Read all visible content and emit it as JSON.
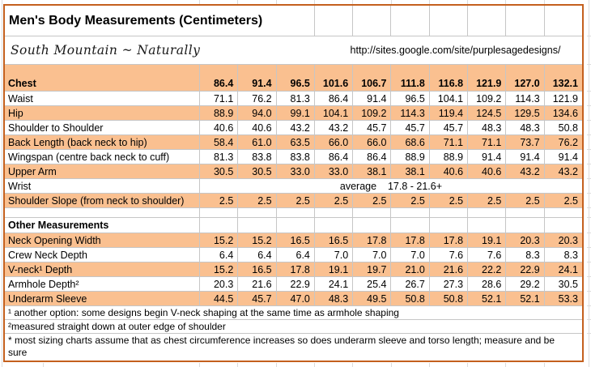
{
  "title": "Men's Body Measurements (Centimeters)",
  "subtitle": "South Mountain ~ Naturally",
  "url": "http://sites.google.com/site/purplesagedesigns/",
  "colors": {
    "band": "#FAC090",
    "border": "#C4601E",
    "gridline": "#C6C6C6"
  },
  "chart_data": {
    "type": "table",
    "title": "Men's Body Measurements (Centimeters)",
    "header": {
      "label": "Chest",
      "values": [
        "86.4",
        "91.4",
        "96.5",
        "101.6",
        "106.7",
        "111.8",
        "116.8",
        "121.9",
        "127.0",
        "132.1"
      ]
    },
    "rows": [
      {
        "kind": "data",
        "band": false,
        "label": "Waist",
        "values": [
          "71.1",
          "76.2",
          "81.3",
          "86.4",
          "91.4",
          "96.5",
          "104.1",
          "109.2",
          "114.3",
          "121.9"
        ]
      },
      {
        "kind": "data",
        "band": true,
        "label": "Hip",
        "values": [
          "88.9",
          "94.0",
          "99.1",
          "104.1",
          "109.2",
          "114.3",
          "119.4",
          "124.5",
          "129.5",
          "134.6"
        ]
      },
      {
        "kind": "data",
        "band": false,
        "label": "Shoulder to Shoulder",
        "values": [
          "40.6",
          "40.6",
          "43.2",
          "43.2",
          "45.7",
          "45.7",
          "45.7",
          "48.3",
          "48.3",
          "50.8"
        ]
      },
      {
        "kind": "data",
        "band": true,
        "label": "Back Length (back neck to hip)",
        "values": [
          "58.4",
          "61.0",
          "63.5",
          "66.0",
          "66.0",
          "68.6",
          "71.1",
          "71.1",
          "73.7",
          "76.2"
        ]
      },
      {
        "kind": "data",
        "band": false,
        "label": "Wingspan (centre back neck to cuff)",
        "values": [
          "81.3",
          "83.8",
          "83.8",
          "86.4",
          "86.4",
          "88.9",
          "88.9",
          "91.4",
          "91.4",
          "91.4"
        ]
      },
      {
        "kind": "data",
        "band": true,
        "label": "Upper Arm",
        "values": [
          "30.5",
          "30.5",
          "33.0",
          "33.0",
          "38.1",
          "38.1",
          "40.6",
          "40.6",
          "43.2",
          "43.2"
        ]
      },
      {
        "kind": "merged",
        "band": false,
        "label": "Wrist",
        "note": "average    17.8 - 21.6+"
      },
      {
        "kind": "data",
        "band": true,
        "label": "Shoulder Slope (from neck to shoulder)",
        "values": [
          "2.5",
          "2.5",
          "2.5",
          "2.5",
          "2.5",
          "2.5",
          "2.5",
          "2.5",
          "2.5",
          "2.5"
        ]
      },
      {
        "kind": "blank",
        "band": false,
        "label": ""
      },
      {
        "kind": "section",
        "band": false,
        "label": "Other Measurements"
      },
      {
        "kind": "data",
        "band": true,
        "label": "Neck Opening Width",
        "values": [
          "15.2",
          "15.2",
          "16.5",
          "16.5",
          "17.8",
          "17.8",
          "17.8",
          "19.1",
          "20.3",
          "20.3"
        ]
      },
      {
        "kind": "data",
        "band": false,
        "label": "Crew Neck Depth",
        "values": [
          "6.4",
          "6.4",
          "6.4",
          "7.0",
          "7.0",
          "7.0",
          "7.6",
          "7.6",
          "8.3",
          "8.3"
        ]
      },
      {
        "kind": "data",
        "band": true,
        "label": "V-neck¹ Depth",
        "values": [
          "15.2",
          "16.5",
          "17.8",
          "19.1",
          "19.7",
          "21.0",
          "21.6",
          "22.2",
          "22.9",
          "24.1"
        ]
      },
      {
        "kind": "data",
        "band": false,
        "label": "Armhole Depth²",
        "values": [
          "20.3",
          "21.6",
          "22.9",
          "24.1",
          "25.4",
          "26.7",
          "27.3",
          "28.6",
          "29.2",
          "30.5"
        ]
      },
      {
        "kind": "data",
        "band": true,
        "label": "Underarm Sleeve",
        "values": [
          "44.5",
          "45.7",
          "47.0",
          "48.3",
          "49.5",
          "50.8",
          "50.8",
          "52.1",
          "52.1",
          "53.3"
        ]
      }
    ],
    "footnotes": [
      "¹ another option: some designs begin V-neck shaping at the same time as armhole shaping",
      "²measured straight down at outer edge of shoulder",
      "* most sizing charts assume that as chest circumference increases so does underarm sleeve and torso length; measure and be sure"
    ]
  }
}
